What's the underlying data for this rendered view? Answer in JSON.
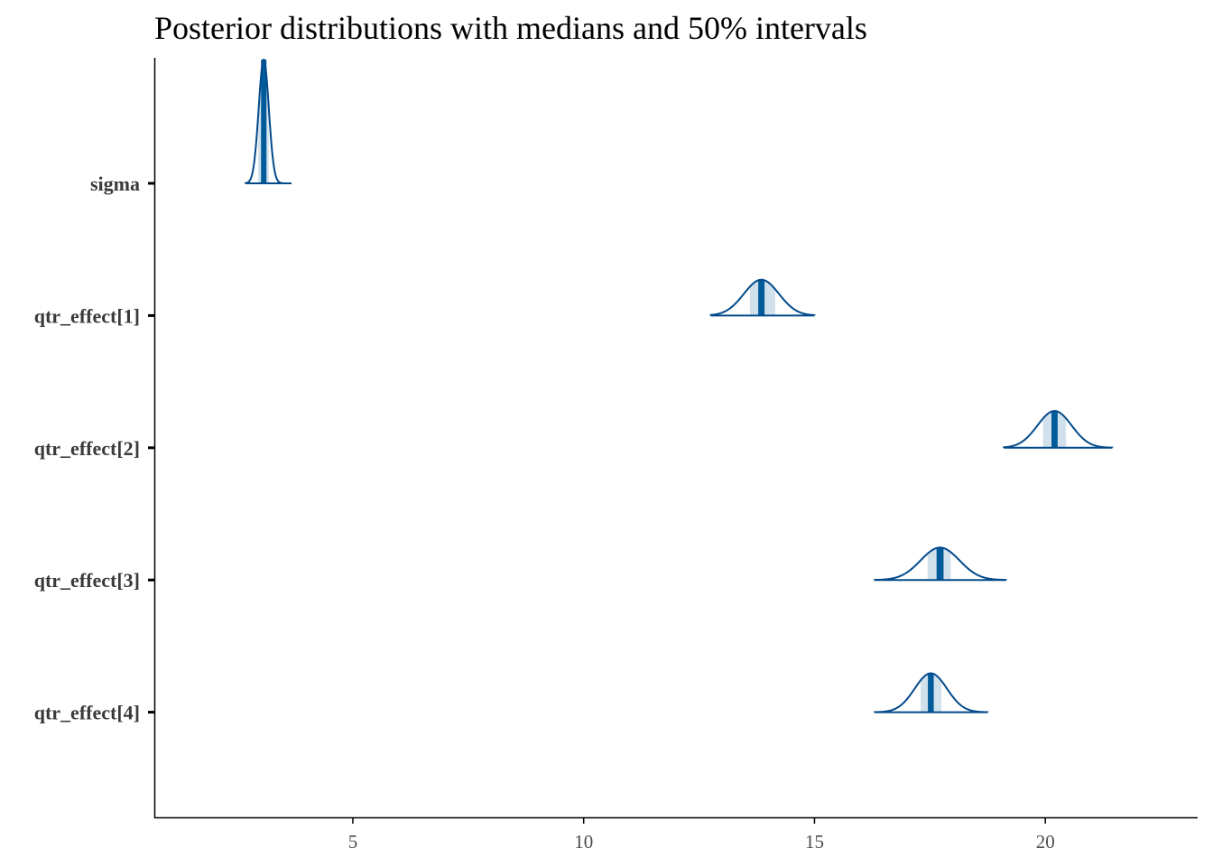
{
  "chart_data": {
    "type": "area",
    "title": "Posterior distributions with medians and 50% intervals",
    "xlabel": "",
    "ylabel": "",
    "xlim": [
      0.7,
      23.3
    ],
    "x_ticks": [
      5,
      10,
      15,
      20
    ],
    "grid": false,
    "legend": "none",
    "colors": {
      "outline": "#034a8b",
      "median": "#005b9a",
      "interval_fill": "#d1e1ec"
    },
    "series": [
      {
        "name": "sigma",
        "median": 3.07,
        "interval_50": [
          2.95,
          3.18
        ],
        "sd": 0.11,
        "range": [
          2.67,
          3.67
        ]
      },
      {
        "name": "qtr_effect[1]",
        "median": 13.85,
        "interval_50": [
          13.6,
          14.15
        ],
        "sd": 0.38,
        "range": [
          12.75,
          15.0
        ]
      },
      {
        "name": "qtr_effect[2]",
        "median": 20.2,
        "interval_50": [
          19.95,
          20.45
        ],
        "sd": 0.37,
        "range": [
          19.1,
          21.45
        ]
      },
      {
        "name": "qtr_effect[3]",
        "median": 17.72,
        "interval_50": [
          17.45,
          17.95
        ],
        "sd": 0.42,
        "range": [
          16.3,
          19.15
        ]
      },
      {
        "name": "qtr_effect[4]",
        "median": 17.52,
        "interval_50": [
          17.3,
          17.75
        ],
        "sd": 0.35,
        "range": [
          16.3,
          18.75
        ]
      }
    ]
  }
}
